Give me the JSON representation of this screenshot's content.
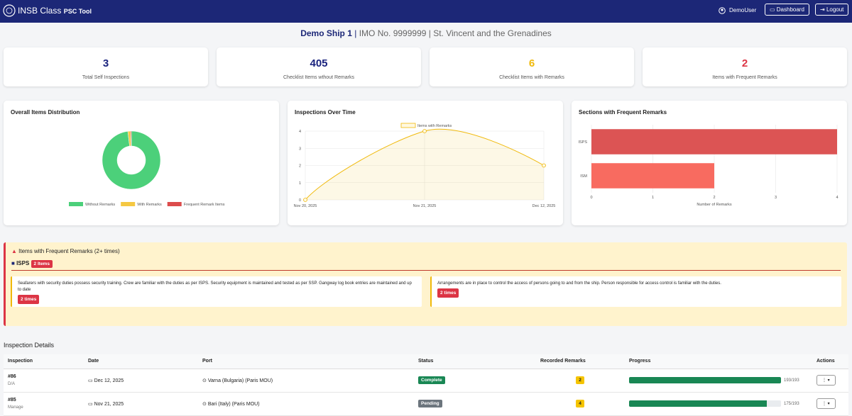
{
  "header": {
    "brand": "INSB Class",
    "brand_suffix": "PSC Tool",
    "user": "DemoUser",
    "dashboard": "Dashboard",
    "logout": "Logout"
  },
  "ship": {
    "name": "Demo Ship 1",
    "separator": "|",
    "details": "IMO No. 9999999 | St. Vincent and the Grenadines"
  },
  "stats": [
    {
      "value": 3,
      "label": "Total Self Inspections",
      "color": "#1a237e"
    },
    {
      "value": 405,
      "label": "Checklist Items wthout Remarks",
      "color": "#1a237e"
    },
    {
      "value": 6,
      "label": "Checklist Items with Remarks",
      "color": "#f0b90b"
    },
    {
      "value": 2,
      "label": "Items with Frequent Remarks",
      "color": "#dc3545"
    }
  ],
  "charts": {
    "donut": {
      "type": "pie",
      "title": "Overall Items Distribution",
      "categories": [
        "Without Remarks",
        "With Remarks",
        "Frequent Remark Items"
      ],
      "values": [
        405,
        6,
        2
      ],
      "colors": [
        "#4cd07a",
        "#f5c842",
        "#dc4c4c"
      ]
    },
    "line": {
      "type": "line",
      "title": "Inspections Over Time",
      "categories": [
        "Nov 20, 2025",
        "Nov 21, 2025",
        "Dec 12, 2025"
      ],
      "series": [
        {
          "name": "Items with Remarks",
          "color": "#f0b90b",
          "values": [
            0,
            4,
            2
          ]
        }
      ],
      "ylim": [
        0,
        4
      ],
      "yticks": [
        0,
        1,
        2,
        3,
        4
      ],
      "grid": true
    },
    "bar": {
      "type": "bar",
      "title": "Sections with Frequent Remarks",
      "categories": [
        "ISPS",
        "ISM"
      ],
      "values": [
        4,
        2
      ],
      "colors": [
        "#dc5454",
        "#f86b60"
      ],
      "xlim": [
        0,
        4
      ],
      "xticks": [
        0,
        1,
        2,
        3,
        4
      ],
      "xlabel": "Number of Remarks",
      "grid": true
    }
  },
  "alert": {
    "title": "Items with Frequent Remarks (2+ times)",
    "section": "ISPS",
    "section_badge": "2 Items",
    "items": [
      {
        "text": "Seafarers with security duties possess security training. Crew are familiar with the duties as per ISPS. Security equipment is maintained and tested as per SSP. Gangway log book entries are maintained and up to date",
        "badge": "2 times"
      },
      {
        "text": "Arrangements are in place to control the access of persons going to and from the ship. Person responsible for access control is familiar with the duties.",
        "badge": "2 times"
      }
    ]
  },
  "table": {
    "title": "Inspection Details",
    "columns": [
      "Inspection",
      "Date",
      "Port",
      "Status",
      "Recorded Remarks",
      "Progress",
      "Actions"
    ],
    "rows": [
      {
        "id": "#86",
        "sub": "D/A",
        "date": "Dec 12, 2025",
        "port": "Varna (Bulgaria) (Paris MOU)",
        "status": "Complete",
        "status_color": "#198754",
        "remarks": 2,
        "progress": 193,
        "total": 193,
        "progress_label": "193/193"
      },
      {
        "id": "#85",
        "sub": "Manage",
        "date": "Nov 21, 2025",
        "port": "Bari (Italy) (Paris MOU)",
        "status": "Pending",
        "status_color": "#6c757d",
        "remarks": 4,
        "progress": 175,
        "total": 193,
        "progress_label": "175/193"
      }
    ]
  }
}
